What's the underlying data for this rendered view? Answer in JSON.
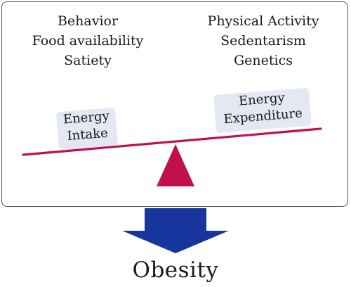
{
  "left_factors": [
    "Behavior",
    "Food availability",
    "Satiety"
  ],
  "right_factors": [
    "Physical Activity",
    "Sedentarism",
    "Genetics"
  ],
  "intake_label": {
    "line1": "Energy",
    "line2": "Intake"
  },
  "expenditure_label": {
    "line1": "Energy",
    "line2": "Expenditure"
  },
  "outcome": "Obesity",
  "colors": {
    "beam": "#c0114a",
    "fulcrum": "#c0114a",
    "arrow": "#18359e",
    "box_fill": "#e3e8f2",
    "frame_border": "#555555"
  }
}
